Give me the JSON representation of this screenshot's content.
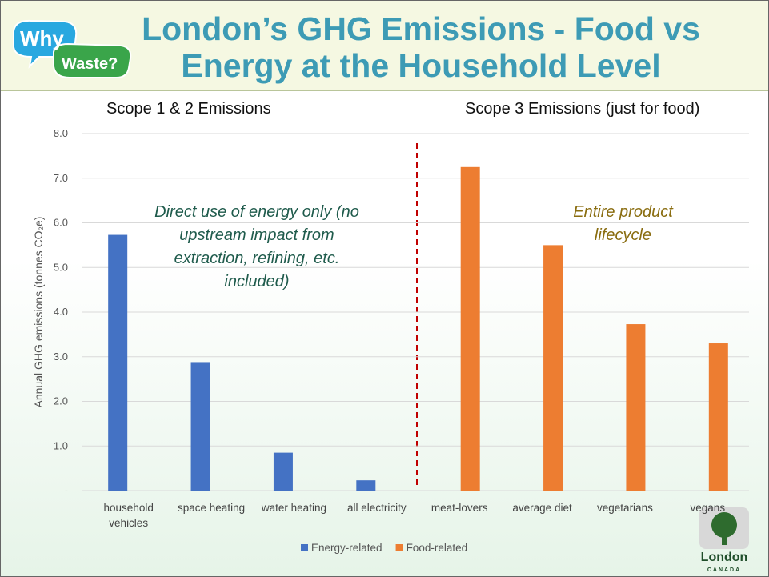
{
  "header": {
    "logo_top": "Why",
    "logo_bottom": "Waste?"
  },
  "chart_data": {
    "type": "bar",
    "title": "London’s GHG Emissions - Food vs Energy at the Household Level",
    "y_label": "Annual GHG emissions (tonnes CO₂e)",
    "annotations": [
      "Scope 1 & 2 Emissions",
      "Scope 3 Emissions (just for food)",
      "Direct use of energy only (no upstream impact from extraction, refining, etc. included)",
      "Entire product lifecycle"
    ],
    "categories": [
      "household vehicles",
      "space heating",
      "water heating",
      "all electricity",
      "meat-lovers",
      "average diet",
      "vegetarians",
      "vegans"
    ],
    "series": [
      {
        "name": "Energy-related",
        "color": "#4472c4",
        "values": [
          5.73,
          2.88,
          0.85,
          0.23,
          null,
          null,
          null,
          null
        ]
      },
      {
        "name": "Food-related",
        "color": "#ed7d31",
        "values": [
          null,
          null,
          null,
          null,
          7.25,
          5.5,
          3.73,
          3.3
        ]
      }
    ],
    "ylim": [
      0,
      8
    ],
    "yticks": [
      {
        "value": 0,
        "label": "-"
      },
      {
        "value": 1,
        "label": "1.0"
      },
      {
        "value": 2,
        "label": "2.0"
      },
      {
        "value": 3,
        "label": "3.0"
      },
      {
        "value": 4,
        "label": "4.0"
      },
      {
        "value": 5,
        "label": "5.0"
      },
      {
        "value": 6,
        "label": "6.0"
      },
      {
        "value": 7,
        "label": "7.0"
      },
      {
        "value": 8,
        "label": "8.0"
      }
    ],
    "grid": true,
    "legend": "bottom"
  },
  "footer": {
    "logo_name": "London",
    "logo_country": "CANADA"
  }
}
